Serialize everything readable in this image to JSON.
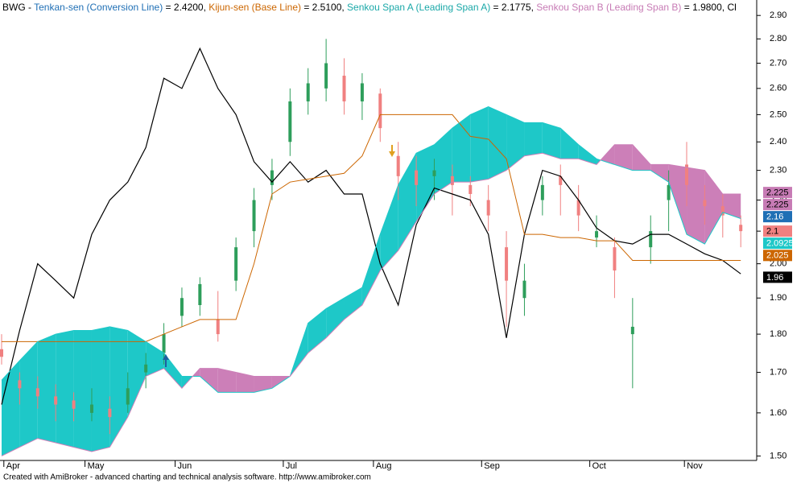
{
  "chart_data": {
    "type": "ichimoku",
    "title_parts": [
      {
        "text": "BWG - ",
        "color": "#000000"
      },
      {
        "text": "Tenkan-sen (Conversion Line)",
        "color": "#1f6fb5"
      },
      {
        "text": " = 2.4200, ",
        "color": "#000000"
      },
      {
        "text": "Kijun-sen (Base Line)",
        "color": "#cc6600"
      },
      {
        "text": " = 2.5100, ",
        "color": "#000000"
      },
      {
        "text": "Senkou Span A (Leading Span A)",
        "color": "#1aa8a8"
      },
      {
        "text": " = 2.1775, ",
        "color": "#000000"
      },
      {
        "text": "Senkou Span B (Leading Span B)",
        "color": "#c77bb5"
      },
      {
        "text": " = 1.9800, Cl",
        "color": "#000000"
      }
    ],
    "footer": "Created with AmiBroker - advanced charting and technical analysis software. http://www.amibroker.com",
    "log_scale": true,
    "xlim": [
      0,
      167
    ],
    "ylim": [
      1.49,
      2.95
    ],
    "yticks": [
      {
        "value": 1.5,
        "label": "1.50"
      },
      {
        "value": 1.6,
        "label": "1.60"
      },
      {
        "value": 1.7,
        "label": "1.70"
      },
      {
        "value": 1.8,
        "label": "1.80"
      },
      {
        "value": 1.9,
        "label": "1.90"
      },
      {
        "value": 2.0,
        "label": "2.00"
      },
      {
        "value": 2.1,
        "label": "2.10"
      },
      {
        "value": 2.2,
        "label": "2.20"
      },
      {
        "value": 2.3,
        "label": "2.30"
      },
      {
        "value": 2.4,
        "label": "2.40"
      },
      {
        "value": 2.5,
        "label": "2.50"
      },
      {
        "value": 2.6,
        "label": "2.60"
      },
      {
        "value": 2.7,
        "label": "2.70"
      },
      {
        "value": 2.8,
        "label": "2.80"
      },
      {
        "value": 2.9,
        "label": "2.90"
      }
    ],
    "xticks": [
      {
        "value": 3,
        "label": "Apr"
      },
      {
        "value": 21,
        "label": "May"
      },
      {
        "value": 41,
        "label": "Jun"
      },
      {
        "value": 65,
        "label": "Jul"
      },
      {
        "value": 85,
        "label": "Aug"
      },
      {
        "value": 109,
        "label": "Sep"
      },
      {
        "value": 133,
        "label": "Oct"
      },
      {
        "value": 154,
        "label": "Nov"
      }
    ],
    "x": [
      0,
      4,
      8,
      12,
      16,
      20,
      24,
      28,
      32,
      36,
      40,
      44,
      48,
      52,
      56,
      60,
      64,
      68,
      72,
      76,
      80,
      84,
      88,
      92,
      96,
      100,
      104,
      108,
      112,
      116,
      120,
      124,
      128,
      132,
      136,
      140,
      144,
      148,
      152,
      156,
      160,
      164
    ],
    "candles": {
      "up_color": "#2e9e5b",
      "down_color": "#f08080",
      "open": [
        1.76,
        1.68,
        1.66,
        1.64,
        1.63,
        1.6,
        1.61,
        1.62,
        1.7,
        1.75,
        1.85,
        1.88,
        1.84,
        1.95,
        2.1,
        2.25,
        2.4,
        2.55,
        2.6,
        2.65,
        2.55,
        2.58,
        2.35,
        2.3,
        2.28,
        2.28,
        2.25,
        2.2,
        2.05,
        1.9,
        2.2,
        2.28,
        2.2,
        2.08,
        2.05,
        1.8,
        2.05,
        2.2,
        2.32,
        2.2,
        2.18,
        2.12
      ],
      "high": [
        1.8,
        1.7,
        1.69,
        1.67,
        1.65,
        1.66,
        1.64,
        1.7,
        1.75,
        1.83,
        1.93,
        1.96,
        1.92,
        2.08,
        2.24,
        2.34,
        2.6,
        2.68,
        2.8,
        2.72,
        2.66,
        2.6,
        2.4,
        2.35,
        2.34,
        2.32,
        2.28,
        2.25,
        2.1,
        2.0,
        2.28,
        2.32,
        2.25,
        2.15,
        2.08,
        1.9,
        2.15,
        2.3,
        2.4,
        2.25,
        2.22,
        2.15
      ],
      "low": [
        1.72,
        1.62,
        1.61,
        1.58,
        1.58,
        1.58,
        1.55,
        1.6,
        1.66,
        1.72,
        1.82,
        1.85,
        1.78,
        1.92,
        2.05,
        2.2,
        2.35,
        2.5,
        2.55,
        2.5,
        2.48,
        2.4,
        2.2,
        2.18,
        2.2,
        2.15,
        2.18,
        2.1,
        1.82,
        1.85,
        2.15,
        2.15,
        2.1,
        2.05,
        1.9,
        1.66,
        2.0,
        2.1,
        2.18,
        2.12,
        2.08,
        2.05
      ],
      "close": [
        1.74,
        1.66,
        1.64,
        1.62,
        1.61,
        1.62,
        1.59,
        1.66,
        1.72,
        1.8,
        1.9,
        1.94,
        1.8,
        2.05,
        2.2,
        2.3,
        2.55,
        2.62,
        2.7,
        2.55,
        2.62,
        2.45,
        2.28,
        2.25,
        2.3,
        2.25,
        2.22,
        2.15,
        1.95,
        1.95,
        2.25,
        2.25,
        2.15,
        2.1,
        1.98,
        1.82,
        2.1,
        2.25,
        2.25,
        2.18,
        2.15,
        2.1
      ]
    },
    "cloud": {
      "above_color": "#1ec8c8",
      "below_color": "#cc7fb8"
    },
    "series": [
      {
        "role": "tenkan",
        "color": "#000000",
        "values": [
          1.62,
          1.81,
          2.0,
          1.95,
          1.9,
          2.09,
          2.2,
          2.26,
          2.38,
          2.64,
          2.6,
          2.76,
          2.6,
          2.5,
          2.33,
          2.26,
          2.33,
          2.26,
          2.3,
          2.22,
          2.22,
          2.0,
          1.88,
          2.12,
          2.24,
          2.22,
          2.2,
          2.09,
          1.79,
          2.09,
          2.3,
          2.28,
          2.2,
          2.11,
          2.07,
          2.06,
          2.09,
          2.09,
          2.06,
          2.03,
          2.01,
          1.97
        ]
      },
      {
        "role": "kijun",
        "color": "#cc6600",
        "values": [
          1.78,
          1.78,
          1.78,
          1.78,
          1.78,
          1.78,
          1.78,
          1.78,
          1.78,
          1.8,
          1.82,
          1.84,
          1.84,
          1.84,
          2.0,
          2.22,
          2.26,
          2.27,
          2.28,
          2.29,
          2.35,
          2.5,
          2.5,
          2.5,
          2.5,
          2.5,
          2.42,
          2.41,
          2.34,
          2.09,
          2.09,
          2.08,
          2.08,
          2.07,
          2.07,
          2.01,
          2.01,
          2.01,
          2.01,
          2.01,
          2.01,
          2.01
        ]
      },
      {
        "role": "senkou_a",
        "color": "#1ec8c8",
        "values": [
          1.68,
          1.73,
          1.78,
          1.8,
          1.81,
          1.81,
          1.82,
          1.81,
          1.78,
          1.75,
          1.69,
          1.69,
          1.65,
          1.65,
          1.65,
          1.66,
          1.69,
          1.83,
          1.87,
          1.9,
          1.93,
          2.09,
          2.25,
          2.36,
          2.39,
          2.45,
          2.5,
          2.53,
          2.5,
          2.47,
          2.47,
          2.45,
          2.39,
          2.34,
          2.32,
          2.3,
          2.3,
          2.26,
          2.09,
          2.06,
          2.16,
          2.14
        ]
      },
      {
        "role": "senkou_b",
        "color": "#cc7fb8",
        "values": [
          1.5,
          1.52,
          1.54,
          1.53,
          1.52,
          1.51,
          1.52,
          1.59,
          1.69,
          1.71,
          1.66,
          1.71,
          1.71,
          1.7,
          1.69,
          1.69,
          1.69,
          1.75,
          1.79,
          1.84,
          1.88,
          1.98,
          2.04,
          2.13,
          2.22,
          2.26,
          2.26,
          2.27,
          2.3,
          2.35,
          2.36,
          2.34,
          2.34,
          2.32,
          2.39,
          2.39,
          2.32,
          2.32,
          2.31,
          2.3,
          2.22,
          2.22
        ]
      }
    ],
    "markers": [
      {
        "value": 2.225,
        "color": "#c77bb5"
      },
      {
        "value": 2.225,
        "color": "#c77bb5"
      },
      {
        "value": 2.16,
        "color": "#1f6fb5"
      },
      {
        "value": 2.1,
        "color": "#f08080"
      },
      {
        "value": 2.0925,
        "color": "#1ec8c8"
      },
      {
        "value": 2.025,
        "color": "#cc6600"
      },
      {
        "value": 1.96,
        "color": "#000000"
      }
    ]
  }
}
